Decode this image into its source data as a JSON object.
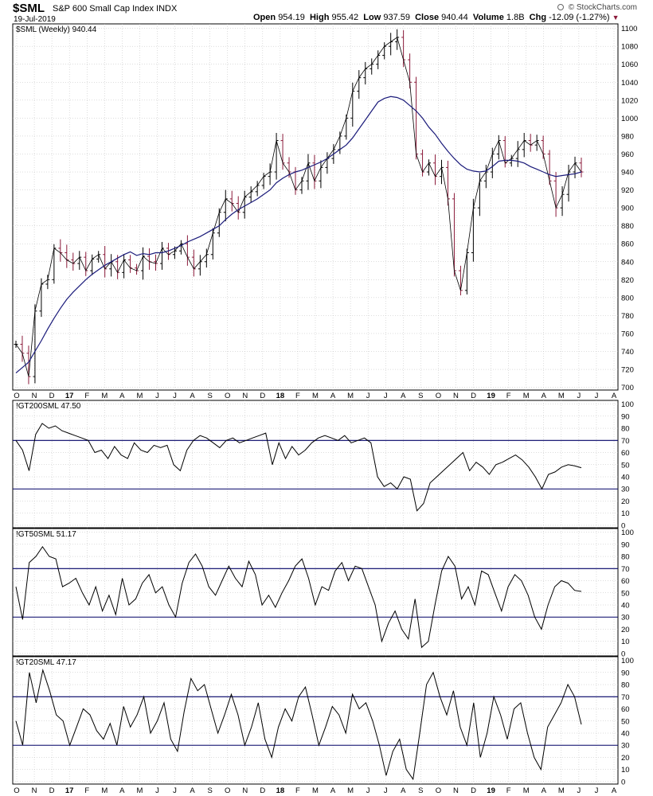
{
  "header": {
    "symbol": "$SML",
    "description": "S&P 600 Small Cap Index",
    "exchange": "INDX",
    "date": "19-Jul-2019",
    "open_label": "Open",
    "open": "954.19",
    "high_label": "High",
    "high": "955.42",
    "low_label": "Low",
    "low": "937.59",
    "close_label": "Close",
    "close": "940.44",
    "volume_label": "Volume",
    "volume": "1.8B",
    "chg_label": "Chg",
    "chg": "-12.09 (-1.27%)",
    "brand": "© StockCharts.com"
  },
  "colors": {
    "up_bar": "#000000",
    "down_bar": "#8b1a3a",
    "ma_line": "#1a1a7a",
    "grid": "#bbbbbb",
    "ref_line": "#000066"
  },
  "x_axis": {
    "labels": [
      "O",
      "N",
      "D",
      "17",
      "F",
      "M",
      "A",
      "M",
      "J",
      "J",
      "A",
      "S",
      "O",
      "N",
      "D",
      "18",
      "F",
      "M",
      "A",
      "M",
      "J",
      "J",
      "A",
      "S",
      "O",
      "N",
      "D",
      "19",
      "F",
      "M",
      "A",
      "M",
      "J",
      "J",
      "A"
    ],
    "bold_labels": [
      "17",
      "18",
      "19"
    ]
  },
  "chart_data": [
    {
      "type": "line",
      "title": "$SML (Weekly) 940.44",
      "series": [
        {
          "name": "$SML (Weekly)",
          "style": "ohlc_bars",
          "values": [
            748,
            738,
            712,
            785,
            815,
            820,
            855,
            850,
            842,
            838,
            845,
            830,
            843,
            848,
            832,
            840,
            828,
            842,
            833,
            830,
            846,
            840,
            838,
            855,
            848,
            852,
            860,
            845,
            832,
            840,
            848,
            872,
            895,
            910,
            905,
            895,
            912,
            918,
            925,
            935,
            940,
            975,
            950,
            940,
            920,
            930,
            950,
            930,
            945,
            955,
            965,
            980,
            1000,
            1030,
            1045,
            1055,
            1060,
            1070,
            1080,
            1085,
            1090,
            1065,
            1040,
            960,
            940,
            950,
            935,
            945,
            910,
            830,
            808,
            850,
            900,
            930,
            940,
            960,
            975,
            950,
            955,
            965,
            975,
            970,
            975,
            960,
            930,
            900,
            915,
            940,
            950,
            940
          ]
        },
        {
          "name": "MA",
          "style": "line",
          "values": [
            716,
            722,
            728,
            740,
            752,
            765,
            777,
            788,
            798,
            806,
            813,
            820,
            826,
            831,
            836,
            840,
            844,
            848,
            851,
            847,
            849,
            848,
            850,
            850,
            852,
            855,
            858,
            862,
            865,
            868,
            872,
            876,
            880,
            887,
            893,
            898,
            902,
            906,
            910,
            915,
            920,
            928,
            933,
            937,
            940,
            942,
            945,
            948,
            951,
            955,
            960,
            965,
            970,
            978,
            988,
            998,
            1008,
            1018,
            1022,
            1024,
            1023,
            1020,
            1014,
            1008,
            1000,
            990,
            982,
            972,
            963,
            955,
            948,
            943,
            941,
            940,
            941,
            946,
            952,
            953,
            953,
            952,
            950,
            946,
            943,
            940,
            937,
            935,
            936,
            937,
            938,
            940
          ]
        }
      ],
      "y_ticks": [
        700,
        720,
        740,
        760,
        780,
        800,
        820,
        840,
        860,
        880,
        900,
        920,
        940,
        960,
        980,
        1000,
        1020,
        1040,
        1060,
        1080,
        1100
      ],
      "ylim": [
        697,
        1105
      ]
    },
    {
      "type": "line",
      "title": "!GT200SML 47.50",
      "series": [
        {
          "name": "!GT200SML",
          "values": [
            70,
            62,
            45,
            75,
            84,
            80,
            82,
            78,
            76,
            74,
            72,
            70,
            60,
            62,
            55,
            65,
            58,
            55,
            68,
            62,
            60,
            66,
            64,
            66,
            50,
            45,
            62,
            70,
            74,
            72,
            68,
            64,
            70,
            72,
            68,
            70,
            72,
            74,
            76,
            50,
            68,
            55,
            65,
            58,
            62,
            68,
            72,
            74,
            72,
            70,
            74,
            68,
            70,
            72,
            68,
            40,
            32,
            35,
            30,
            40,
            38,
            12,
            18,
            35,
            40,
            45,
            50,
            55,
            60,
            45,
            52,
            48,
            42,
            50,
            52,
            55,
            58,
            54,
            48,
            40,
            30,
            42,
            44,
            48,
            50,
            49,
            47.5
          ]
        }
      ],
      "y_ticks": [
        0,
        10,
        20,
        30,
        40,
        50,
        60,
        70,
        80,
        90,
        100
      ],
      "reference_lines": [
        30,
        70
      ],
      "ylim": [
        -2,
        103
      ]
    },
    {
      "type": "line",
      "title": "!GT50SML 51.17",
      "series": [
        {
          "name": "!GT50SML",
          "values": [
            55,
            28,
            75,
            80,
            88,
            80,
            78,
            55,
            58,
            62,
            50,
            40,
            55,
            35,
            48,
            32,
            62,
            40,
            45,
            58,
            65,
            50,
            55,
            40,
            30,
            58,
            75,
            82,
            72,
            55,
            48,
            60,
            72,
            62,
            55,
            76,
            65,
            40,
            48,
            38,
            50,
            60,
            72,
            78,
            62,
            40,
            55,
            52,
            68,
            75,
            60,
            72,
            70,
            55,
            40,
            10,
            25,
            35,
            20,
            12,
            45,
            5,
            10,
            40,
            68,
            80,
            72,
            45,
            55,
            40,
            68,
            65,
            50,
            35,
            55,
            65,
            60,
            48,
            30,
            20,
            40,
            55,
            60,
            58,
            52,
            51.17
          ]
        }
      ],
      "y_ticks": [
        0,
        10,
        20,
        30,
        40,
        50,
        60,
        70,
        80,
        90,
        100
      ],
      "reference_lines": [
        30,
        70
      ],
      "ylim": [
        -2,
        103
      ]
    },
    {
      "type": "line",
      "title": "!GT20SML 47.17",
      "series": [
        {
          "name": "!GT20SML",
          "values": [
            50,
            30,
            90,
            65,
            92,
            75,
            55,
            50,
            30,
            45,
            60,
            55,
            42,
            35,
            48,
            30,
            62,
            45,
            55,
            70,
            40,
            50,
            65,
            35,
            25,
            58,
            85,
            75,
            80,
            60,
            40,
            55,
            72,
            55,
            30,
            45,
            65,
            35,
            20,
            45,
            60,
            50,
            70,
            78,
            55,
            30,
            45,
            62,
            55,
            40,
            72,
            60,
            65,
            50,
            30,
            5,
            25,
            35,
            10,
            2,
            40,
            80,
            90,
            70,
            55,
            75,
            45,
            30,
            65,
            20,
            40,
            70,
            55,
            35,
            60,
            65,
            40,
            20,
            10,
            45,
            55,
            65,
            80,
            70,
            47.17
          ]
        }
      ],
      "y_ticks": [
        0,
        10,
        20,
        30,
        40,
        50,
        60,
        70,
        80,
        90,
        100
      ],
      "reference_lines": [
        30,
        70
      ],
      "ylim": [
        -2,
        103
      ]
    }
  ]
}
